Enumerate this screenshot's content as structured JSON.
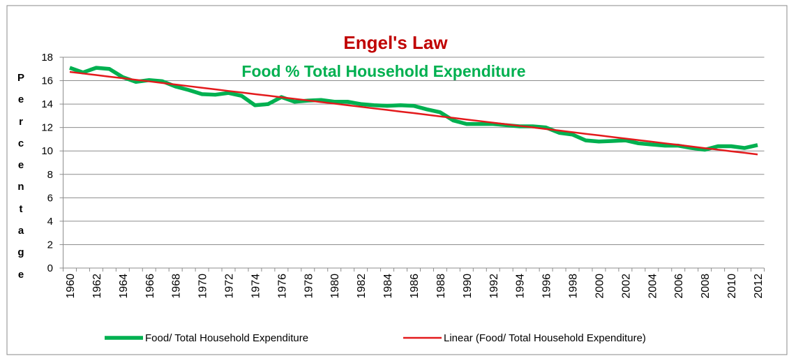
{
  "chart_data": {
    "type": "line",
    "title": "Engel's Law",
    "subtitle": "Food % Total Household Expenditure",
    "y_label": "Percentage",
    "categories": [
      "1960",
      null,
      "1962",
      null,
      "1964",
      null,
      "1966",
      null,
      "1968",
      null,
      "1970",
      null,
      "1972",
      null,
      "1974",
      null,
      "1976",
      null,
      "1978",
      null,
      "1980",
      null,
      "1982",
      null,
      "1984",
      null,
      "1986",
      null,
      "1988",
      null,
      "1990",
      null,
      "1992",
      null,
      "1994",
      null,
      "1996",
      null,
      "1998",
      null,
      "2000",
      null,
      "2002",
      null,
      "2004",
      null,
      "2006",
      null,
      "2008",
      null,
      "2010",
      null,
      "2012"
    ],
    "series": [
      {
        "name": "Food/ Total Household Expenditure",
        "color": "#00b050",
        "values": [
          17.1,
          16.7,
          17.1,
          17.0,
          16.3,
          15.9,
          16.05,
          15.95,
          15.5,
          15.2,
          14.85,
          14.8,
          14.95,
          14.7,
          13.9,
          14.0,
          14.6,
          14.2,
          14.3,
          14.35,
          14.2,
          14.2,
          14.0,
          13.9,
          13.85,
          13.9,
          13.85,
          13.55,
          13.3,
          12.6,
          12.3,
          12.3,
          12.3,
          12.2,
          12.1,
          12.1,
          12.0,
          11.55,
          11.4,
          10.9,
          10.8,
          10.85,
          10.9,
          10.65,
          10.55,
          10.45,
          10.45,
          10.25,
          10.1,
          10.4,
          10.4,
          10.25,
          10.5
        ]
      },
      {
        "name": "Linear (Food/ Total Household Expenditure)",
        "color": "#e31a1c",
        "values": [
          16.75,
          16.61,
          16.48,
          16.34,
          16.21,
          16.07,
          15.94,
          15.8,
          15.67,
          15.53,
          15.39,
          15.26,
          15.12,
          14.99,
          14.85,
          14.72,
          14.58,
          14.45,
          14.31,
          14.17,
          14.04,
          13.9,
          13.77,
          13.63,
          13.5,
          13.36,
          13.23,
          13.09,
          12.95,
          12.82,
          12.68,
          12.55,
          12.41,
          12.28,
          12.14,
          12.01,
          11.87,
          11.74,
          11.6,
          11.46,
          11.33,
          11.19,
          11.06,
          10.92,
          10.79,
          10.65,
          10.52,
          10.38,
          10.24,
          10.11,
          9.97,
          9.84,
          9.7
        ]
      }
    ],
    "ylim": [
      0,
      18
    ],
    "yticks": [
      0,
      2,
      4,
      6,
      8,
      10,
      12,
      14,
      16,
      18
    ],
    "grid": true,
    "legend": "bottom"
  }
}
